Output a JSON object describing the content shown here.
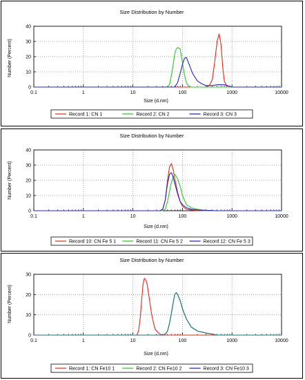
{
  "charts": [
    {
      "title": "Size Distribution by Number",
      "xlabel": "Size (d.nm)",
      "ylabel": "Number (Percent)",
      "legend": [
        "Record 1: CN 1",
        "Record 2: CN 2",
        "Record 3: CN 3"
      ]
    },
    {
      "title": "Size Distribution by Number",
      "xlabel": "Size (d.nm)",
      "ylabel": "Number (Percent)",
      "legend": [
        "Record 10: CN Fe 5 1",
        "Record 11: CN Fe 5 2",
        "Record 12: CN Fe 5 3"
      ]
    },
    {
      "title": "Size Distribution by Number",
      "xlabel": "Size (d.nm)",
      "ylabel": "Number (Percent)",
      "legend": [
        "Record 1: CN Fe10 1",
        "Record 2: CN Fe10 2",
        "Record 3: CN Fe10 3"
      ]
    }
  ],
  "colors": {
    "red": "#e8231b",
    "green": "#28c828",
    "blue": "#2222cc",
    "dark": "#1f6e7a"
  },
  "chart_data": [
    {
      "type": "line",
      "title": "Size Distribution by Number",
      "xlabel": "Size (d.nm)",
      "ylabel": "Number (Percent)",
      "x_scale": "log",
      "xlim": [
        0.1,
        10000
      ],
      "ylim": [
        0,
        40
      ],
      "xticks": [
        "0.1",
        "1",
        "10",
        "100",
        "1000",
        "10000"
      ],
      "yticks": [
        "0",
        "10",
        "20",
        "30",
        "40"
      ],
      "grid": true,
      "legend_position": "bottom",
      "series": [
        {
          "name": "Record 1: CN 1",
          "color": "#e8231b",
          "x": [
            0.1,
            300,
            350,
            400,
            450,
            500,
            550,
            600,
            650,
            700,
            800,
            10000
          ],
          "y": [
            0,
            0,
            1,
            5,
            17,
            30,
            35,
            28,
            13,
            4,
            0,
            0
          ]
        },
        {
          "name": "Record 2: CN 2",
          "color": "#28c828",
          "x": [
            0.1,
            50,
            55,
            60,
            65,
            70,
            75,
            80,
            90,
            100,
            110,
            120,
            130,
            150,
            10000
          ],
          "y": [
            0,
            0,
            2,
            8,
            15,
            22,
            25,
            26,
            25,
            16,
            8,
            3,
            1,
            0,
            0
          ]
        },
        {
          "name": "Record 3: CN 3",
          "color": "#2222cc",
          "x": [
            0.1,
            70,
            80,
            90,
            100,
            110,
            120,
            140,
            160,
            200,
            250,
            300,
            400,
            500,
            600,
            700,
            800,
            1000,
            10000
          ],
          "y": [
            0,
            0,
            3,
            9,
            15,
            19,
            19.5,
            14,
            9,
            4,
            2,
            1,
            1,
            1.5,
            1.5,
            1.5,
            1,
            0,
            0
          ]
        }
      ]
    },
    {
      "type": "line",
      "title": "Size Distribution by Number",
      "xlabel": "Size (d.nm)",
      "ylabel": "Number (Percent)",
      "x_scale": "log",
      "xlim": [
        0.1,
        10000
      ],
      "ylim": [
        0,
        40
      ],
      "xticks": [
        "0.1",
        "1",
        "10",
        "100",
        "1000",
        "10000"
      ],
      "yticks": [
        "0",
        "10",
        "20",
        "30",
        "40"
      ],
      "grid": true,
      "legend_position": "bottom",
      "series": [
        {
          "name": "Record 10: CN Fe 5 1",
          "color": "#e8231b",
          "x": [
            0.1,
            35,
            40,
            45,
            50,
            55,
            60,
            65,
            70,
            80,
            90,
            100,
            120,
            150,
            200,
            10000
          ],
          "y": [
            0,
            0,
            1,
            7,
            20,
            29,
            31,
            27,
            21,
            12,
            6,
            3,
            1,
            0.5,
            0,
            0
          ]
        },
        {
          "name": "Record 11: CN Fe 5 2",
          "color": "#28c828",
          "x": [
            0.1,
            40,
            45,
            50,
            55,
            60,
            65,
            70,
            80,
            90,
            100,
            120,
            150,
            200,
            300,
            10000
          ],
          "y": [
            0,
            0,
            1,
            6,
            13,
            19,
            22,
            24,
            21,
            16,
            10,
            4,
            2,
            1,
            0,
            0
          ]
        },
        {
          "name": "Record 12: CN Fe 5 3",
          "color": "#2222cc",
          "x": [
            0.1,
            35,
            40,
            45,
            50,
            55,
            60,
            65,
            70,
            80,
            90,
            100,
            120,
            150,
            200,
            300,
            500,
            10000
          ],
          "y": [
            0,
            0,
            1,
            7,
            18,
            24,
            25,
            22,
            18,
            11,
            6,
            4,
            2,
            1,
            0.5,
            0.3,
            0,
            0
          ]
        }
      ]
    },
    {
      "type": "line",
      "title": "Size Distribution by Number",
      "xlabel": "Size (d.nm)",
      "ylabel": "Number (Percent)",
      "x_scale": "log",
      "xlim": [
        0.1,
        10000
      ],
      "ylim": [
        0,
        30
      ],
      "xticks": [
        "0.1",
        "1",
        "10",
        "100",
        "1000",
        "10000"
      ],
      "yticks": [
        "0",
        "10",
        "20",
        "30"
      ],
      "grid": true,
      "legend_position": "bottom",
      "series": [
        {
          "name": "Record 1: CN Fe10 1",
          "color": "#e8231b",
          "x": [
            0.1,
            12,
            13,
            14,
            15,
            16,
            17,
            18,
            19,
            20,
            22,
            24,
            26,
            28,
            30,
            35,
            40,
            10000
          ],
          "y": [
            0,
            0,
            2,
            8,
            17,
            25,
            28,
            27.5,
            26,
            23,
            16,
            10,
            6,
            3,
            2,
            0.5,
            0,
            0
          ]
        },
        {
          "name": "Record 2: CN Fe10 2",
          "color": "#28c828",
          "x": [
            0.1,
            40,
            45,
            50,
            55,
            60,
            65,
            70,
            75,
            80,
            90,
            100,
            120,
            150,
            200,
            300,
            400,
            500,
            10000
          ],
          "y": [
            0,
            0,
            0.5,
            2,
            6,
            11,
            16,
            20,
            21,
            20,
            17,
            13,
            8,
            4,
            2,
            1,
            0.5,
            0,
            0
          ]
        },
        {
          "name": "Record 3: CN Fe10 3",
          "color": "#2222cc",
          "x": [
            0.1,
            40,
            45,
            50,
            55,
            60,
            65,
            70,
            75,
            80,
            90,
            100,
            120,
            150,
            200,
            300,
            400,
            500,
            10000
          ],
          "y": [
            0,
            0,
            0.5,
            2,
            6,
            11,
            16,
            20,
            21,
            20,
            17,
            13,
            8,
            4,
            2,
            1,
            0.5,
            0,
            0
          ]
        }
      ]
    }
  ]
}
